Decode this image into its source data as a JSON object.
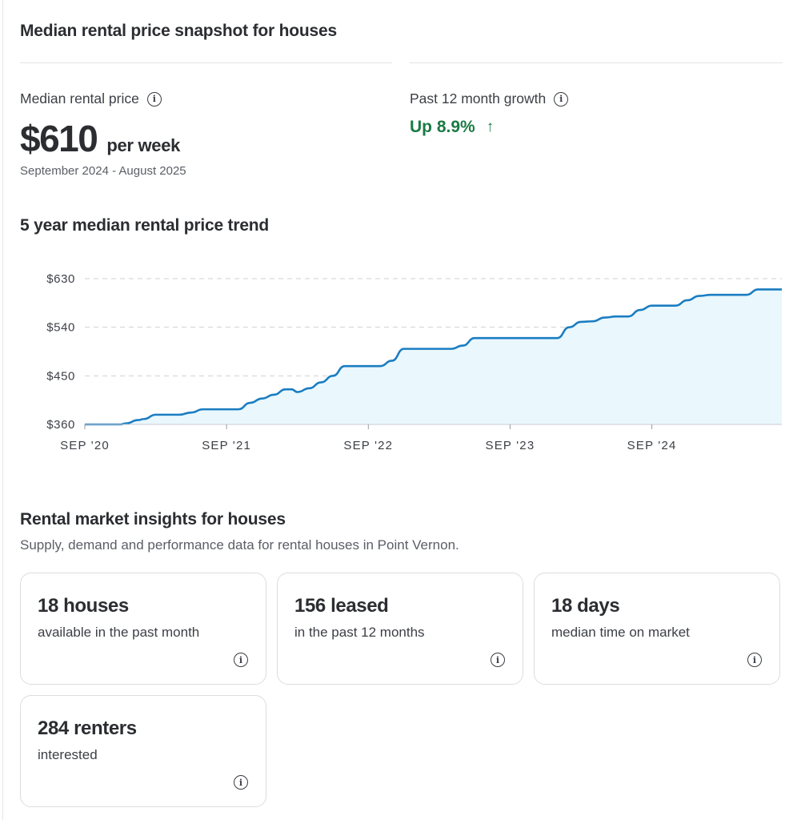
{
  "snapshot": {
    "title": "Median rental price snapshot for houses",
    "median_label": "Median rental price",
    "price": "$610",
    "per": "per week",
    "period": "September 2024 - August 2025",
    "growth_label": "Past 12 month growth",
    "growth_value": "Up 8.9%",
    "growth_arrow": "↑"
  },
  "trend": {
    "title": "5 year median rental price trend"
  },
  "chart_data": {
    "type": "area",
    "title": "5 year median rental price trend",
    "xlabel": "",
    "ylabel": "",
    "x_tick_labels": [
      "SEP '20",
      "SEP '21",
      "SEP '22",
      "SEP '23",
      "SEP '24"
    ],
    "y_tick_labels": [
      "$630",
      "$540",
      "$450",
      "$360"
    ],
    "y_ticks": [
      630,
      540,
      450,
      360
    ],
    "ylim": [
      360,
      630
    ],
    "xlim": [
      0,
      59
    ],
    "x_unit": "months since Sep 2020",
    "grid": true,
    "line_color": "#1a7dc2",
    "fill_color": "#eaf7fc",
    "series": [
      {
        "name": "",
        "x": [
          0,
          3,
          3.5,
          4.5,
          5,
          6,
          7,
          8,
          9,
          10,
          11,
          12,
          13,
          14,
          15,
          16,
          17,
          17.5,
          18,
          19,
          20,
          21,
          22,
          23,
          24,
          25,
          26,
          27,
          28,
          29,
          30,
          31,
          32,
          33,
          34,
          35,
          36,
          37,
          38,
          39,
          40,
          41,
          42,
          43,
          44,
          45,
          46,
          47,
          48,
          49,
          50,
          51,
          52,
          53,
          54,
          55,
          56,
          57,
          58,
          59
        ],
        "y": [
          360,
          360,
          362,
          368,
          370,
          378,
          378,
          378,
          382,
          388,
          388,
          388,
          388,
          400,
          408,
          415,
          425,
          425,
          420,
          427,
          438,
          450,
          468,
          468,
          468,
          468,
          478,
          500,
          500,
          500,
          500,
          500,
          506,
          520,
          520,
          520,
          520,
          520,
          520,
          520,
          520,
          540,
          550,
          551,
          558,
          560,
          560,
          572,
          580,
          580,
          580,
          590,
          598,
          600,
          600,
          600,
          600,
          610,
          610,
          610
        ]
      }
    ]
  },
  "insights": {
    "title": "Rental market insights for houses",
    "subtitle": "Supply, demand and performance data for rental houses in Point Vernon.",
    "cards": [
      {
        "value": "18 houses",
        "desc": "available in the past month"
      },
      {
        "value": "156 leased",
        "desc": "in the past 12 months"
      },
      {
        "value": "18 days",
        "desc": "median time on market"
      },
      {
        "value": "284 renters",
        "desc": "interested"
      }
    ]
  },
  "icons": {
    "info": "info-circle-icon",
    "growth": "arrow-up-icon"
  },
  "colors": {
    "accent_green": "#1b7a43",
    "line_blue": "#1a7dc2",
    "area_fill": "#eaf7fc"
  }
}
